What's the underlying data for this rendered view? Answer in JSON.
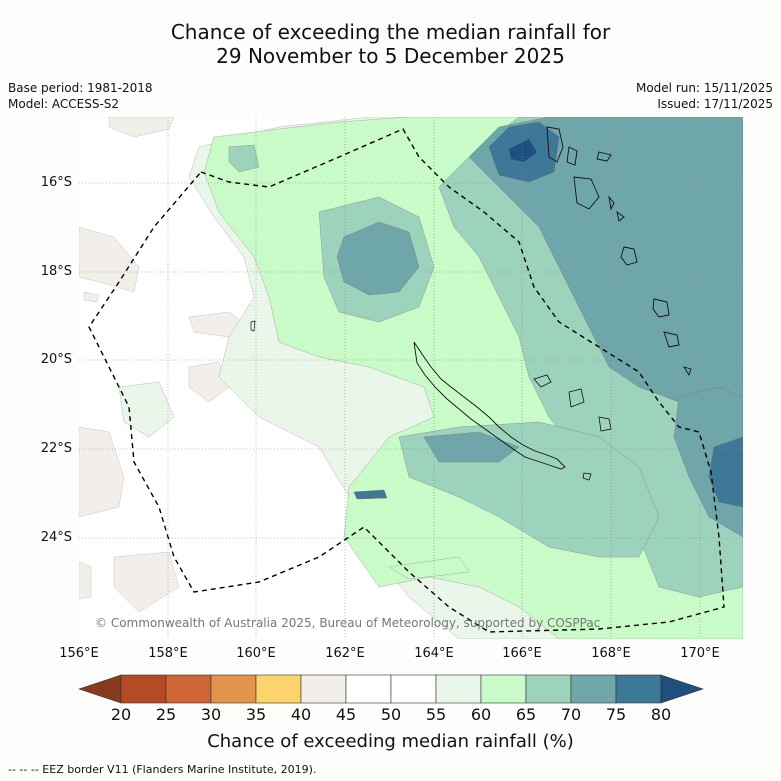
{
  "title": {
    "line1": "Chance of exceeding the median rainfall for",
    "line2": "29 November to 5 December 2025"
  },
  "meta": {
    "base_period": "Base period: 1981-2018",
    "model": "Model: ACCESS-S2",
    "model_run": "Model run: 15/11/2025",
    "issued": "Issued: 17/11/2025"
  },
  "map": {
    "lat_labels": [
      "16°S",
      "18°S",
      "20°S",
      "22°S",
      "24°S"
    ],
    "lon_labels": [
      "156°E",
      "158°E",
      "160°E",
      "162°E",
      "164°E",
      "166°E",
      "168°E",
      "170°E"
    ],
    "copyright": "© Commonwealth of Australia 2025, Bureau of Meteorology, supported by COSPPac"
  },
  "colorbar": {
    "ticks": [
      "20",
      "25",
      "30",
      "35",
      "40",
      "45",
      "50",
      "55",
      "60",
      "65",
      "70",
      "75",
      "80"
    ],
    "colors": {
      "lt20": "#8a3a1c",
      "20_25": "#b54b25",
      "25_30": "#cf6535",
      "30_35": "#e3944c",
      "35_40": "#fdd46c",
      "40_45": "#f2eeea",
      "45_50": "#ffffff",
      "50_55": "#ffffff",
      "55_60": "#eaf6ea",
      "60_65": "#c8fbc8",
      "65_70": "#9dd3bc",
      "70_75": "#6fa6aa",
      "75_80": "#3e7899",
      "gt80": "#1f4f7d"
    },
    "label": "Chance of exceeding median rainfall (%)"
  },
  "legend": {
    "eez": "--  --  -- EEZ border V11 (Flanders Marine Institute, 2019)."
  }
}
